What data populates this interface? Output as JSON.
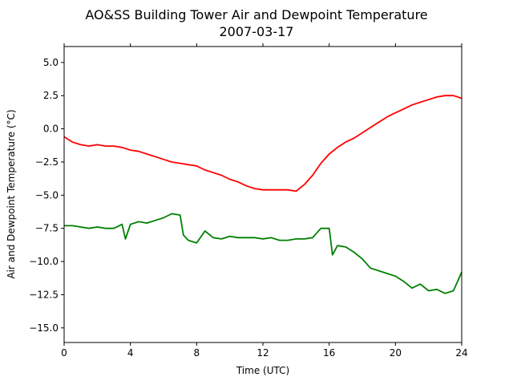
{
  "chart_data": {
    "type": "line",
    "title": "AO&SS Building Tower Air and Dewpoint Temperature",
    "subtitle": "2007-03-17",
    "xlabel": "Time (UTC)",
    "ylabel": "Air and Dewpoint Temperature (°C)",
    "xlim": [
      0,
      24
    ],
    "ylim": [
      -16.1,
      6.2
    ],
    "x_ticks": [
      0,
      4,
      8,
      12,
      16,
      20,
      24
    ],
    "y_ticks": [
      5.0,
      2.5,
      0.0,
      -2.5,
      -5.0,
      -7.5,
      -10.0,
      -12.5,
      -15.0
    ],
    "grid": false,
    "legend": "none",
    "series": [
      {
        "color": "#ff0000",
        "x": [
          0,
          0.5,
          1,
          1.5,
          2,
          2.5,
          3,
          3.5,
          4,
          4.5,
          5,
          5.5,
          6,
          6.5,
          7,
          7.5,
          8,
          8.5,
          9,
          9.5,
          10,
          10.5,
          11,
          11.5,
          12,
          12.5,
          13,
          13.5,
          14,
          14.5,
          15,
          15.5,
          16,
          16.5,
          17,
          17.5,
          18,
          18.5,
          19,
          19.5,
          20,
          20.5,
          21,
          21.5,
          22,
          22.5,
          23,
          23.5,
          24
        ],
        "values": [
          -0.6,
          -1.0,
          -1.2,
          -1.3,
          -1.2,
          -1.3,
          -1.3,
          -1.4,
          -1.6,
          -1.7,
          -1.9,
          -2.1,
          -2.3,
          -2.5,
          -2.6,
          -2.7,
          -2.8,
          -3.1,
          -3.3,
          -3.5,
          -3.8,
          -4.0,
          -4.3,
          -4.5,
          -4.6,
          -4.6,
          -4.6,
          -4.6,
          -4.7,
          -4.2,
          -3.5,
          -2.6,
          -1.9,
          -1.4,
          -1.0,
          -0.7,
          -0.3,
          0.1,
          0.5,
          0.9,
          1.2,
          1.5,
          1.8,
          2.0,
          2.2,
          2.4,
          2.5,
          2.5,
          2.3
        ]
      },
      {
        "color": "#008000",
        "x": [
          0,
          0.5,
          1,
          1.5,
          2,
          2.5,
          3,
          3.5,
          3.7,
          4,
          4.5,
          5,
          5.5,
          6,
          6.5,
          7,
          7.2,
          7.5,
          8,
          8.5,
          9,
          9.5,
          10,
          10.5,
          11,
          11.5,
          12,
          12.5,
          13,
          13.5,
          14,
          14.5,
          15,
          15.5,
          16,
          16.2,
          16.5,
          17,
          17.5,
          18,
          18.5,
          19,
          19.5,
          20,
          20.5,
          21,
          21.5,
          22,
          22.5,
          23,
          23.5,
          24
        ],
        "values": [
          -7.3,
          -7.3,
          -7.4,
          -7.5,
          -7.4,
          -7.5,
          -7.5,
          -7.2,
          -8.3,
          -7.2,
          -7.0,
          -7.1,
          -6.9,
          -6.7,
          -6.4,
          -6.5,
          -8.0,
          -8.4,
          -8.6,
          -7.7,
          -8.2,
          -8.3,
          -8.1,
          -8.2,
          -8.2,
          -8.2,
          -8.3,
          -8.2,
          -8.4,
          -8.4,
          -8.3,
          -8.3,
          -8.2,
          -7.5,
          -7.5,
          -9.5,
          -8.8,
          -8.9,
          -9.3,
          -9.8,
          -10.5,
          -10.7,
          -10.9,
          -11.1,
          -11.5,
          -12.0,
          -11.7,
          -12.2,
          -12.1,
          -12.4,
          -12.2,
          -10.8
        ]
      }
    ]
  }
}
